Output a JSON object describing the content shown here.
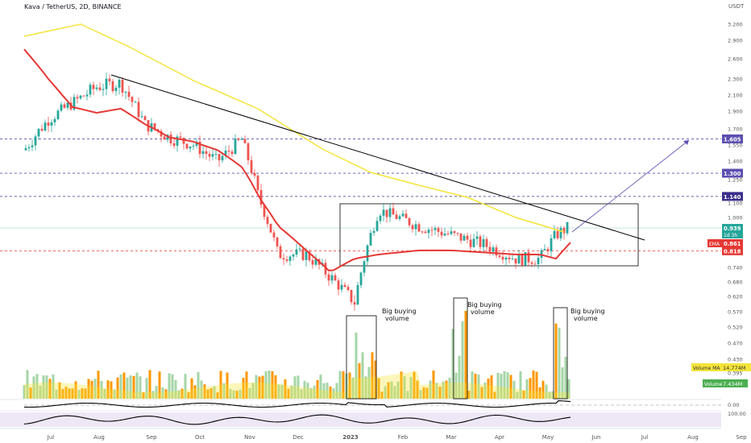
{
  "header": {
    "title": "Kava / TetherUS, 2D, BINANCE"
  },
  "price_axis": {
    "unit": "USDT",
    "ticks": [
      "3.200",
      "2.900",
      "2.600",
      "2.300",
      "2.100",
      "1.900",
      "1.700",
      "1.550",
      "1.400",
      "1.250",
      "1.100",
      "1.000",
      "0.740",
      "0.680",
      "0.620",
      "0.570",
      "0.520",
      "0.470",
      "0.430",
      "0.395"
    ],
    "volume_tick": "100.00",
    "osc_tick": "0.00"
  },
  "time_axis": {
    "labels": [
      "Jul",
      "Aug",
      "Sep",
      "Oct",
      "Nov",
      "Dec",
      "2023",
      "Feb",
      "Mar",
      "Apr",
      "May",
      "Jun",
      "Jul",
      "Aug",
      "Sep"
    ]
  },
  "levels": [
    {
      "label": "1.605",
      "value": 1.605,
      "color": "#5b4fb0"
    },
    {
      "label": "1.300",
      "value": 1.3,
      "color": "#5b4fb0"
    },
    {
      "label": "1.140",
      "value": 1.14,
      "color": "#3a2f8a"
    },
    {
      "label": "0.818",
      "value": 0.818,
      "color": "#e53935"
    }
  ],
  "price_tags": {
    "last_price": "0.939",
    "countdown": "1d 3h",
    "ema_label": "EMA",
    "ema_value": "0.861"
  },
  "volume_tags": {
    "ma_label": "Volume MA",
    "ma_value": "14.774M",
    "vol_label": "Volume",
    "vol_value": "7.434M"
  },
  "annotations": [
    {
      "text_line1": "Big buying",
      "text_line2": "volume"
    },
    {
      "text_line1": "Big buying",
      "text_line2": "volume"
    },
    {
      "text_line1": "Big buying",
      "text_line2": "volume"
    }
  ],
  "colors": {
    "up": "#26a69a",
    "down": "#ef5350",
    "ema": "#e53935",
    "ma": "#f5e43a",
    "trendline": "#000000",
    "projection": "#5b4fb0",
    "vol_up": "#a5d6a7",
    "vol_down": "#ff9800"
  },
  "chart_data": {
    "type": "candlestick",
    "symbol": "Kava / TetherUS, 2D, BINANCE",
    "y_scale": "log",
    "ylim": [
      0.38,
      3.4
    ],
    "series": [
      {
        "name": "EMA",
        "anchor_values": [
          2.75,
          2.3,
          1.95,
          1.88,
          1.93,
          1.75,
          1.62,
          1.58,
          1.5,
          1.35,
          1.15,
          0.95,
          0.82,
          0.72,
          0.78,
          0.8,
          0.82,
          0.82,
          0.81,
          0.8,
          0.8,
          0.78,
          0.86
        ]
      }
    ],
    "levels": [
      1.605,
      1.3,
      1.14,
      0.818
    ],
    "last_close": 0.939
  }
}
